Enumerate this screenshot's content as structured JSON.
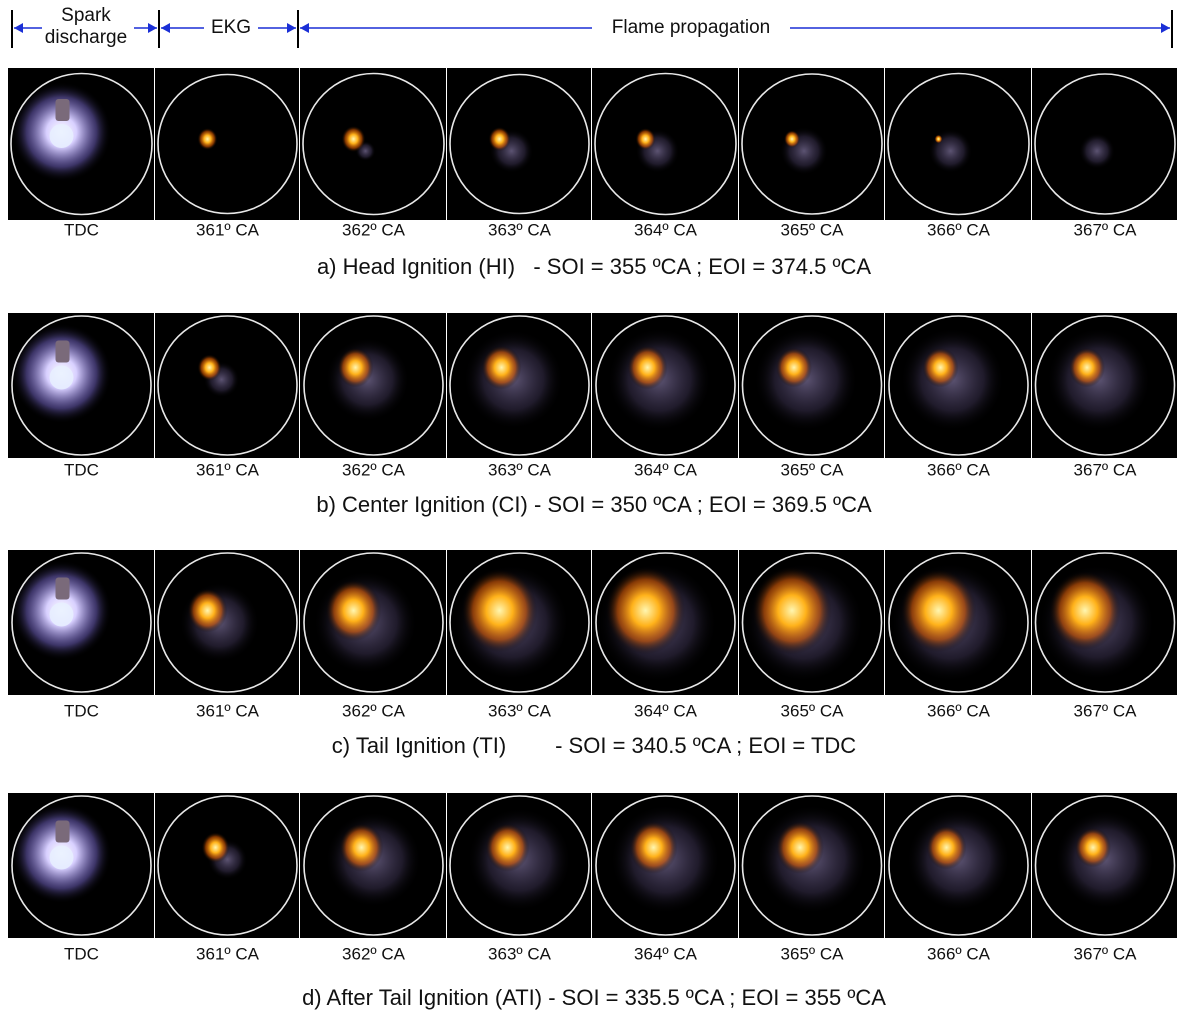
{
  "header": {
    "segments": [
      {
        "lines": [
          "Spark",
          "discharge"
        ]
      },
      {
        "lines": [
          "EKG"
        ]
      },
      {
        "lines": [
          "Flame propagation"
        ]
      }
    ]
  },
  "rows": [
    {
      "frames": [
        "TDC",
        "361º CA",
        "362º CA",
        "363º CA",
        "364º CA",
        "365º CA",
        "366º CA",
        "367º CA"
      ],
      "caption": "a) Head Ignition (HI)   - SOI = 355 ºCA ; EOI = 374.5 ºCA"
    },
    {
      "frames": [
        "TDC",
        "361º CA",
        "362º CA",
        "363º CA",
        "364º CA",
        "365º CA",
        "366º CA",
        "367º CA"
      ],
      "caption": "b) Center Ignition (CI) - SOI = 350 ºCA ; EOI = 369.5 ºCA"
    },
    {
      "frames": [
        "TDC",
        "361º CA",
        "362º CA",
        "363º CA",
        "364º CA",
        "365º CA",
        "366º CA",
        "367º CA"
      ],
      "caption": "c) Tail Ignition (TI)        - SOI = 340.5 ºCA ; EOI = TDC"
    },
    {
      "frames": [
        "TDC",
        "361º CA",
        "362º CA",
        "363º CA",
        "364º CA",
        "365º CA",
        "366º CA",
        "367º CA"
      ],
      "caption": "d) After Tail Ignition (ATI) - SOI = 335.5 ºCA ; EOI = 355 ºCA"
    }
  ]
}
